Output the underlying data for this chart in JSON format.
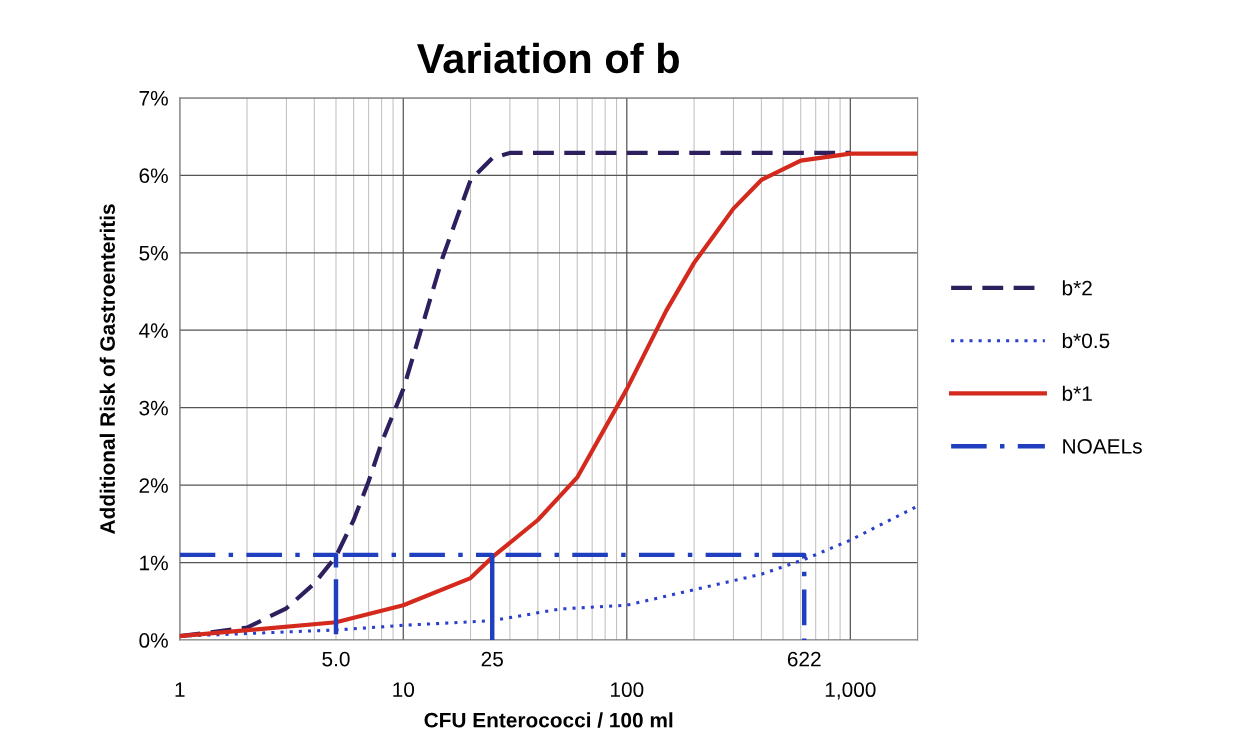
{
  "chart_data": {
    "type": "line",
    "title": "Variation of b",
    "xlabel": "CFU Enterococci / 100 ml",
    "ylabel": "Additional Risk of Gastroenteritis",
    "log": "x",
    "xlim": [
      1,
      2000
    ],
    "xticks": [
      1,
      10,
      100,
      {
        "value": 1000,
        "label": "1,000"
      }
    ],
    "annotations": [
      {
        "text": "5.0",
        "x": 5,
        "y": 0
      },
      {
        "text": "25",
        "x": 25,
        "y": 0
      },
      {
        "text": "622",
        "x": 622,
        "y": 0
      }
    ],
    "ylim": [
      0,
      7
    ],
    "yticks": [
      {
        "value": 0,
        "label": "0%"
      },
      {
        "value": 1,
        "label": "1%"
      },
      {
        "value": 2,
        "label": "2%"
      },
      {
        "value": 3,
        "label": "3%"
      },
      {
        "value": 4,
        "label": "4%"
      },
      {
        "value": 5,
        "label": "5%"
      },
      {
        "value": 6,
        "label": "6%"
      },
      {
        "value": 7,
        "label": "7%"
      }
    ],
    "grid": true,
    "legend": "right",
    "marker": "none",
    "series": [
      {
        "name": "b*2",
        "color": "#2e1f5e",
        "line_style": "dashed",
        "x": [
          1,
          2,
          3,
          4,
          5,
          6,
          7,
          8,
          10,
          12,
          15,
          20,
          25,
          30,
          50,
          100,
          1000
        ],
        "values": [
          0.05,
          0.16,
          0.41,
          0.73,
          1.08,
          1.55,
          2.05,
          2.55,
          3.24,
          4.0,
          4.94,
          5.94,
          6.22,
          6.29,
          6.29,
          6.29,
          6.29
        ]
      },
      {
        "name": "b*0.5",
        "color": "#2a3fcc",
        "line_style": "dotted",
        "x": [
          1,
          5,
          10,
          25,
          50,
          100,
          200,
          400,
          622,
          1000,
          2000
        ],
        "values": [
          0.05,
          0.13,
          0.19,
          0.25,
          0.4,
          0.45,
          0.65,
          0.85,
          1.04,
          1.29,
          1.73
        ]
      },
      {
        "name": "b*1",
        "color": "#d42a1e",
        "line_style": "solid",
        "x": [
          1,
          5,
          10,
          20,
          25,
          40,
          60,
          100,
          150,
          200,
          300,
          400,
          600,
          1000,
          2000
        ],
        "values": [
          0.05,
          0.23,
          0.45,
          0.8,
          1.07,
          1.55,
          2.1,
          3.24,
          4.25,
          4.87,
          5.57,
          5.94,
          6.19,
          6.28,
          6.28
        ]
      },
      {
        "name": "NOAELs",
        "color": "#1f3fbf",
        "line_style": "dashdot",
        "x": [
          1,
          5,
          5,
          5,
          25,
          25,
          25,
          622,
          622
        ],
        "values": [
          1.1,
          1.1,
          0,
          1.1,
          1.1,
          0,
          1.1,
          1.1,
          0
        ]
      }
    ]
  }
}
